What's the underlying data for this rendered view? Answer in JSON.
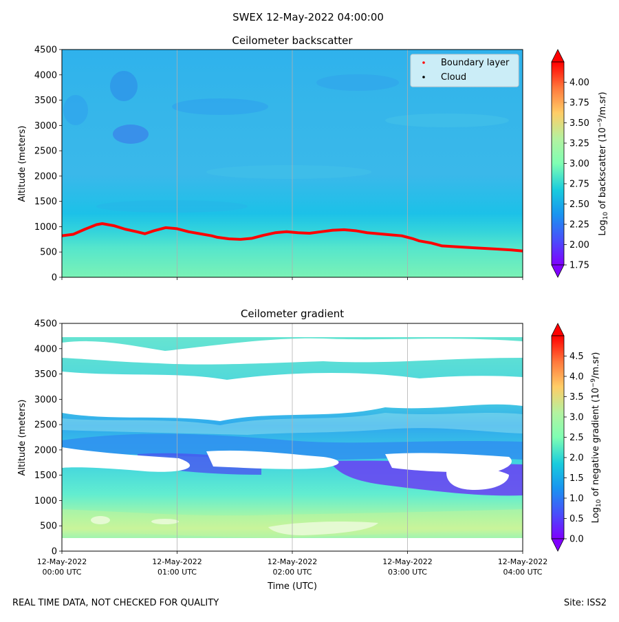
{
  "figure": {
    "suptitle": "SWEX 12-May-2022 04:00:00",
    "footer_left": "REAL TIME DATA, NOT CHECKED FOR QUALITY",
    "footer_right": "Site: ISS2"
  },
  "colors": {
    "boundary_layer": "#ff0000",
    "cloud": "#000000",
    "grid": "#b0b0b0"
  },
  "icons": [
    "boundary-layer-marker-icon",
    "cloud-marker-icon",
    "colorbar-extend-max-icon",
    "colorbar-extend-min-icon"
  ],
  "chart_data": [
    {
      "type": "heatmap",
      "title": "Ceilometer backscatter",
      "ylabel": "Altitude (meters)",
      "xlabel": "",
      "ylim": [
        0,
        4500
      ],
      "xlim_hours": [
        0,
        4
      ],
      "yticks": [
        "0",
        "500",
        "1000",
        "1500",
        "2000",
        "2500",
        "3000",
        "3500",
        "4000",
        "4500"
      ],
      "xticks": [],
      "grid": "vertical",
      "colorbar": {
        "label_prefix": "Log",
        "label_sub": "10",
        "label_mid": " of backscatter (10",
        "label_sup": "−9",
        "label_end": "/m.sr)",
        "range": [
          1.75,
          4.25
        ],
        "ticks": [
          "1.75",
          "2.00",
          "2.25",
          "2.50",
          "2.75",
          "3.00",
          "3.25",
          "3.50",
          "3.75",
          "4.00"
        ],
        "extend": "both"
      },
      "legend": {
        "placement": "top-right",
        "entries": [
          {
            "label": "Boundary layer",
            "color": "#ff0000"
          },
          {
            "label": "Cloud",
            "color": "#000000"
          }
        ]
      },
      "series": [
        {
          "name": "Boundary layer",
          "x_hours": [
            0,
            0.1,
            0.2,
            0.3,
            0.35,
            0.45,
            0.55,
            0.65,
            0.72,
            0.8,
            0.9,
            1.0,
            1.1,
            1.2,
            1.3,
            1.35,
            1.45,
            1.55,
            1.65,
            1.75,
            1.85,
            1.95,
            2.05,
            2.15,
            2.25,
            2.35,
            2.45,
            2.55,
            2.65,
            2.75,
            2.85,
            2.95,
            3.05,
            3.1,
            3.2,
            3.3,
            3.45,
            3.6,
            3.75,
            3.9,
            4.0
          ],
          "values": [
            820,
            850,
            950,
            1040,
            1060,
            1020,
            950,
            900,
            860,
            920,
            980,
            960,
            900,
            860,
            820,
            790,
            760,
            750,
            770,
            830,
            880,
            900,
            880,
            870,
            900,
            930,
            940,
            920,
            880,
            860,
            840,
            820,
            760,
            720,
            680,
            620,
            600,
            580,
            560,
            540,
            520
          ]
        }
      ]
    },
    {
      "type": "heatmap",
      "title": "Ceilometer gradient",
      "ylabel": "Altitude (meters)",
      "xlabel": "Time (UTC)",
      "ylim": [
        0,
        4500
      ],
      "xlim_hours": [
        0,
        4
      ],
      "yticks": [
        "0",
        "500",
        "1000",
        "1500",
        "2000",
        "2500",
        "3000",
        "3500",
        "4000",
        "4500"
      ],
      "xticks": [
        {
          "date": "12-May-2022",
          "time": "00:00 UTC"
        },
        {
          "date": "12-May-2022",
          "time": "01:00 UTC"
        },
        {
          "date": "12-May-2022",
          "time": "02:00 UTC"
        },
        {
          "date": "12-May-2022",
          "time": "03:00 UTC"
        },
        {
          "date": "12-May-2022",
          "time": "04:00 UTC"
        }
      ],
      "grid": "vertical",
      "colorbar": {
        "label_prefix": "Log",
        "label_sub": "10",
        "label_mid": " of negative gradient (10",
        "label_sup": "−9",
        "label_end": "/m.sr)",
        "range": [
          0,
          5
        ],
        "ticks": [
          "0.0",
          "0.5",
          "1.0",
          "1.5",
          "2.0",
          "2.5",
          "3.0",
          "3.5",
          "4.0",
          "4.5"
        ],
        "extend": "both"
      }
    }
  ]
}
